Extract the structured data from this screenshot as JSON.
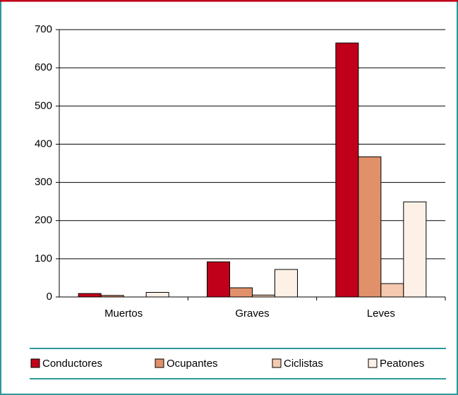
{
  "chart_data": {
    "type": "bar",
    "categories": [
      "Muertos",
      "Graves",
      "Leves"
    ],
    "series": [
      {
        "name": "Conductores",
        "color": "#c0001a",
        "values": [
          9,
          92,
          665
        ]
      },
      {
        "name": "Ocupantes",
        "color": "#e0916a",
        "values": [
          4,
          24,
          367
        ]
      },
      {
        "name": "Ciclistas",
        "color": "#f4c9b0",
        "values": [
          0,
          5,
          35
        ]
      },
      {
        "name": "Peatones",
        "color": "#fdf1e7",
        "values": [
          12,
          72,
          249
        ]
      }
    ],
    "ylim": [
      0,
      700
    ],
    "yticks": [
      0,
      100,
      200,
      300,
      400,
      500,
      600,
      700
    ],
    "grid": true,
    "legend": "bottom"
  }
}
